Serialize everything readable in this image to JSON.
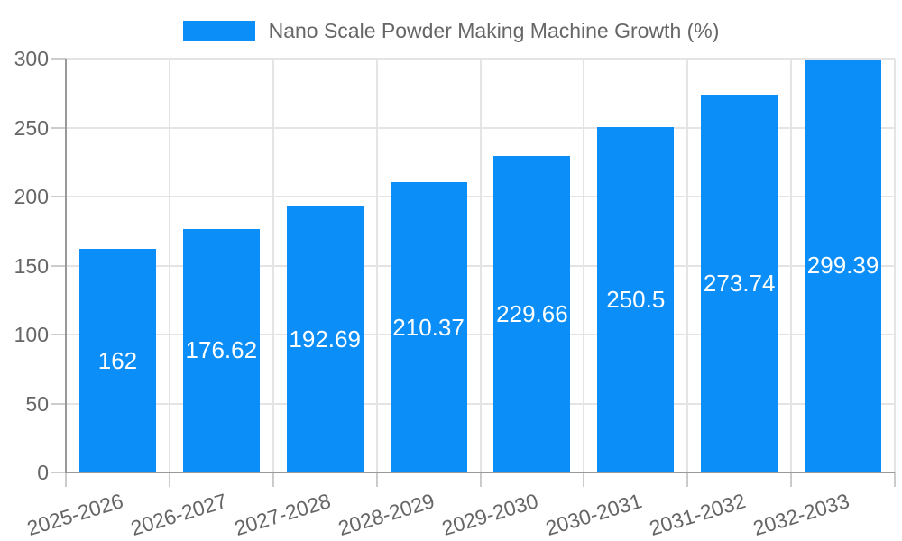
{
  "page": {
    "background": "#ffffff"
  },
  "legend": {
    "label": "Nano Scale Powder Making Machine Growth (%)",
    "swatch_color": "#0b8ef8"
  },
  "chart_data": {
    "type": "bar",
    "title": "",
    "categories": [
      "2025-2026",
      "2026-2027",
      "2027-2028",
      "2028-2029",
      "2029-2030",
      "2030-2031",
      "2031-2032",
      "2032-2033"
    ],
    "series": [
      {
        "name": "Nano Scale Powder Making Machine Growth (%)",
        "values": [
          162,
          176.62,
          192.69,
          210.37,
          229.66,
          250.5,
          273.74,
          299.39
        ],
        "color": "#0b8ef8"
      }
    ],
    "value_labels": [
      "162",
      "176.62",
      "192.69",
      "210.37",
      "229.66",
      "250.5",
      "273.74",
      "299.39"
    ],
    "xlabel": "",
    "ylabel": "",
    "ylim": [
      0,
      300
    ],
    "yticks": [
      0,
      50,
      100,
      150,
      200,
      250,
      300
    ],
    "grid": true,
    "legend_position": "top-center",
    "bar_label_color": "#ffffff",
    "tick_label_color": "#666666",
    "grid_color": "#e4e4e4",
    "axis_color": "#999999",
    "x_label_rotation_deg": -17
  }
}
